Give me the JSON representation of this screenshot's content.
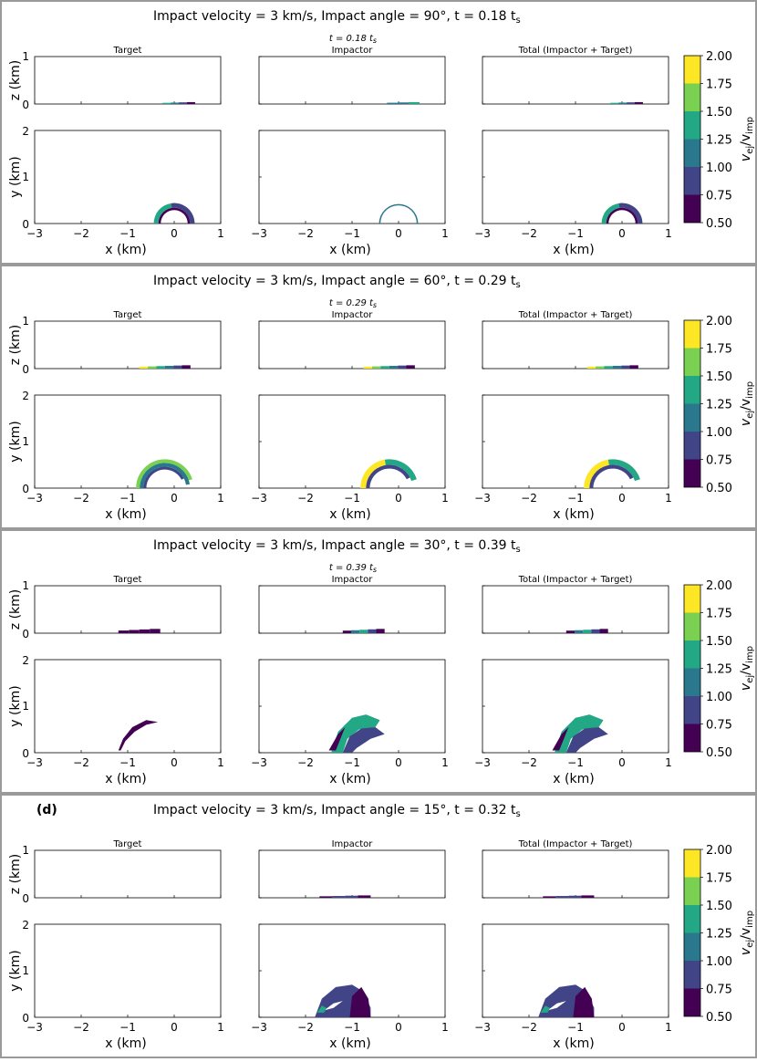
{
  "chart_data": {
    "type": "scatter",
    "description_note": "Four panel groups (rows). Each row: a title, a 3-column grid of side-view (x-z) and top-view (x-y) ejecta maps, colored by normalized ejecta velocity, plus a colorbar.",
    "colorbar": {
      "label_main": "v",
      "label_sub1": "ej",
      "label_mid": "/v",
      "label_sub2": "imp",
      "ticks": [
        "2.00",
        "1.75",
        "1.50",
        "1.25",
        "1.00",
        "0.75",
        "0.50"
      ],
      "colors": [
        "#fde725",
        "#7ad151",
        "#22a884",
        "#2a788e",
        "#414487",
        "#440154"
      ]
    },
    "columns": [
      "Target",
      "Impactor",
      "Total (Impactor + Target)"
    ],
    "x_axis": {
      "label": "x (km)",
      "range": [
        -3,
        1
      ],
      "ticks": [
        "−3",
        "−2",
        "−1",
        "0",
        "1"
      ]
    },
    "z_axis": {
      "label": "z (km)",
      "range": [
        0,
        1
      ],
      "ticks": [
        "1",
        "0"
      ]
    },
    "y_axis": {
      "label": "y (km)",
      "range": [
        0,
        2
      ],
      "ticks": [
        "2",
        "1",
        "0"
      ]
    },
    "rows": [
      {
        "tag": "",
        "title": "Impact velocity = 3 km/s, Impact angle =  90°, t =   0.18 t",
        "title_sub": "s",
        "subtitle": "t =   0.18 t",
        "subtitle_sub": "s",
        "velocity_km_s": 3,
        "angle_deg": 90,
        "time_ts": 0.18
      },
      {
        "tag": "",
        "title": "Impact velocity = 3 km/s, Impact angle =  60°, t =   0.29 t",
        "title_sub": "s",
        "subtitle": "t =   0.29 t",
        "subtitle_sub": "s",
        "velocity_km_s": 3,
        "angle_deg": 60,
        "time_ts": 0.29
      },
      {
        "tag": "",
        "title": "Impact velocity = 3 km/s, Impact angle =  30°, t =   0.39 t",
        "title_sub": "s",
        "subtitle": "t =   0.39 t",
        "subtitle_sub": "s",
        "velocity_km_s": 3,
        "angle_deg": 30,
        "time_ts": 0.39
      },
      {
        "tag": "(d)",
        "title": "Impact velocity = 3 km/s, Impact angle =  15°, t =   0.32 t",
        "title_sub": "s",
        "subtitle": "",
        "subtitle_sub": "",
        "velocity_km_s": 3,
        "angle_deg": 15,
        "time_ts": 0.32
      }
    ]
  }
}
